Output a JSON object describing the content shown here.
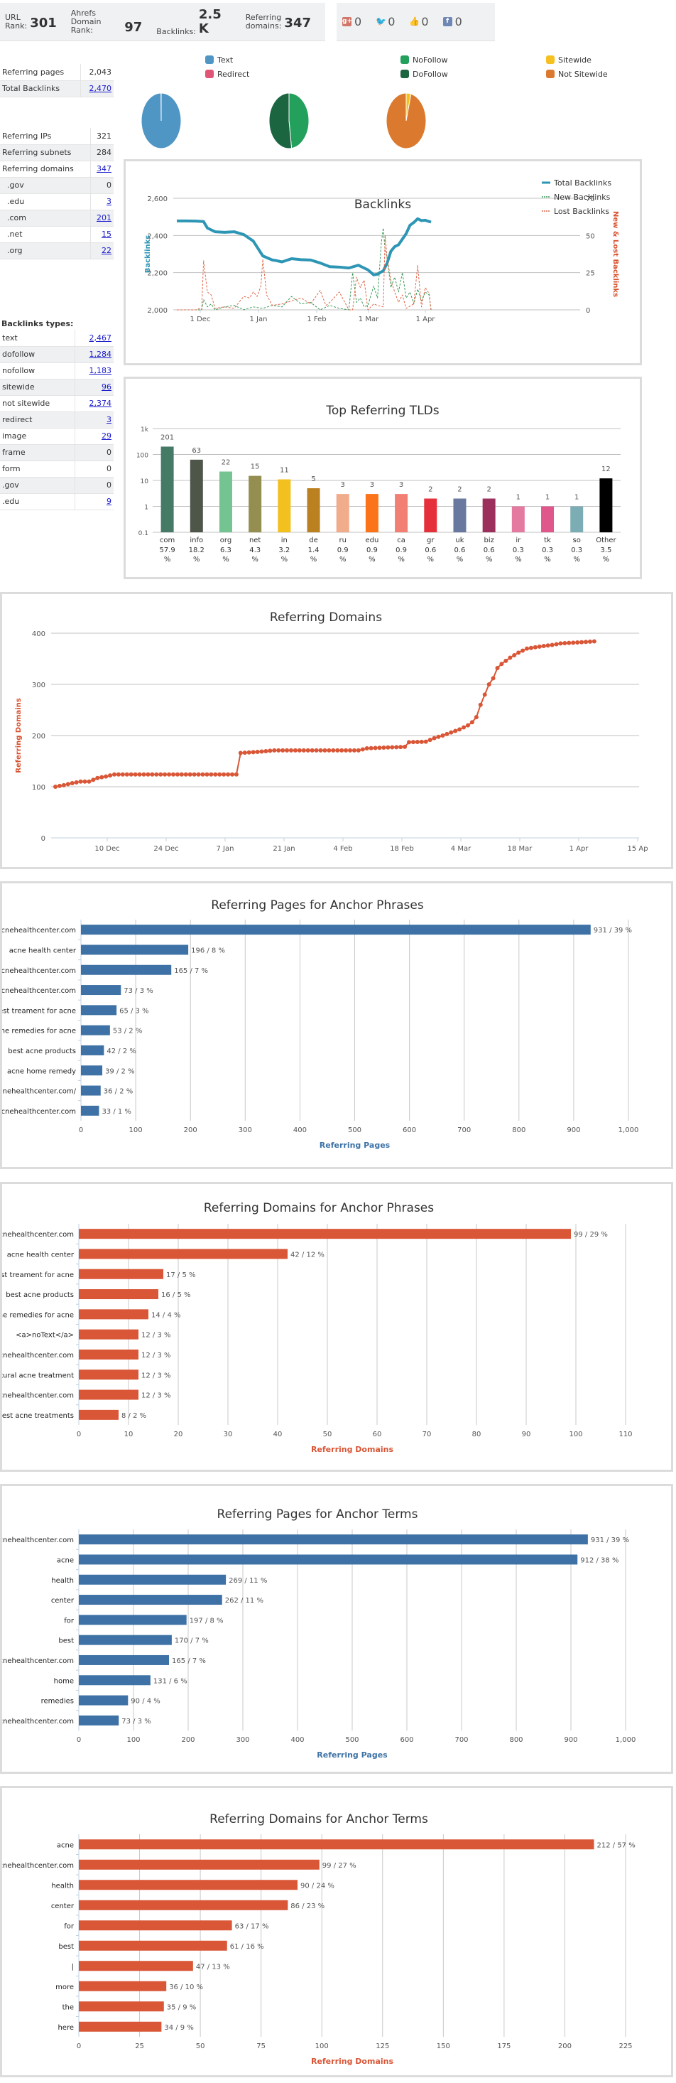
{
  "header": {
    "metrics": [
      {
        "label_line1": "URL",
        "label_line2": "Rank:",
        "value": "301"
      },
      {
        "label_line1": "Ahrefs",
        "label_line2": "Domain Rank:",
        "value": "97"
      },
      {
        "label_line1": "",
        "label_line2": "Backlinks:",
        "value": "2.5 K"
      },
      {
        "label_line1": "Referring",
        "label_line2": "domains:",
        "value": "347"
      }
    ],
    "social": [
      {
        "icon": "google-plus-icon",
        "glyph": "g+",
        "color": "#d0766a",
        "value": "0"
      },
      {
        "icon": "twitter-icon",
        "glyph": "🐦",
        "color": "#5aa9dd",
        "value": "0"
      },
      {
        "icon": "like-icon",
        "glyph": "👍",
        "color": "#7d9cc8",
        "value": "0"
      },
      {
        "icon": "facebook-icon",
        "glyph": "f",
        "color": "#6f87b5",
        "value": "0"
      }
    ]
  },
  "stats1": [
    {
      "label": "Referring pages",
      "value": "2,043",
      "link": false
    },
    {
      "label": "Total Backlinks",
      "value": "2,470",
      "link": true
    }
  ],
  "stats2": [
    {
      "label": "Referring IPs",
      "value": "321",
      "link": false
    },
    {
      "label": "Referring subnets",
      "value": "284",
      "link": false
    },
    {
      "label": "Referring domains",
      "value": "347",
      "link": true
    },
    {
      "label": "  .gov",
      "value": "0",
      "link": false
    },
    {
      "label": "  .edu",
      "value": "3",
      "link": true
    },
    {
      "label": "  .com",
      "value": "201",
      "link": true
    },
    {
      "label": "  .net",
      "value": "15",
      "link": true
    },
    {
      "label": "  .org",
      "value": "22",
      "link": true
    }
  ],
  "backlink_types": {
    "title": "Backlinks types:",
    "rows": [
      {
        "label": "text",
        "value": "2,467",
        "link": true
      },
      {
        "label": "dofollow",
        "value": "1,284",
        "link": true
      },
      {
        "label": "nofollow",
        "value": "1,183",
        "link": true
      },
      {
        "label": "sitewide",
        "value": "96",
        "link": true
      },
      {
        "label": "not sitewide",
        "value": "2,374",
        "link": true
      },
      {
        "label": "redirect",
        "value": "3",
        "link": true
      },
      {
        "label": "image",
        "value": "29",
        "link": true
      },
      {
        "label": "frame",
        "value": "0",
        "link": false
      },
      {
        "label": "form",
        "value": "0",
        "link": false
      },
      {
        "label": ".gov",
        "value": "0",
        "link": false
      },
      {
        "label": ".edu",
        "value": "9",
        "link": true
      }
    ]
  },
  "chart_data": [
    {
      "type": "pie",
      "title": "",
      "legend": [
        {
          "name": "Text",
          "color": "#4f96c5"
        },
        {
          "name": "Redirect",
          "color": "#e05575"
        }
      ],
      "slices": [
        {
          "name": "Text",
          "value": 2467,
          "color": "#4f96c5"
        },
        {
          "name": "Redirect",
          "value": 3,
          "color": "#e05575"
        }
      ]
    },
    {
      "type": "pie",
      "title": "",
      "legend": [
        {
          "name": "NoFollow",
          "color": "#23a05c"
        },
        {
          "name": "DoFollow",
          "color": "#1b6540"
        }
      ],
      "slices": [
        {
          "name": "NoFollow",
          "value": 1183,
          "color": "#23a05c"
        },
        {
          "name": "DoFollow",
          "value": 1284,
          "color": "#1b6540"
        }
      ]
    },
    {
      "type": "pie",
      "title": "",
      "legend": [
        {
          "name": "Sitewide",
          "color": "#f5c020"
        },
        {
          "name": "Not Sitewide",
          "color": "#db7a2e"
        }
      ],
      "slices": [
        {
          "name": "Sitewide",
          "value": 96,
          "color": "#f5c020"
        },
        {
          "name": "Not Sitewide",
          "value": 2374,
          "color": "#db7a2e"
        }
      ]
    },
    {
      "type": "line",
      "title": "Backlinks",
      "ylabel": "Backlinks",
      "y2label": "New & Lost Backlinks",
      "ylim": [
        2000,
        2600
      ],
      "yticks": [
        "2,000",
        "2,200",
        "2,400",
        "2,600"
      ],
      "y2lim": [
        0,
        75
      ],
      "y2ticks": [
        "0",
        "25",
        "50",
        "75"
      ],
      "xticks": [
        "1 Dec",
        "1 Jan",
        "1 Feb",
        "1 Mar",
        "1 Apr"
      ],
      "legend_position": "top-right",
      "series": [
        {
          "name": "Total Backlinks",
          "color": "#2e96b5",
          "axis": "left",
          "x": [
            0,
            5,
            10,
            14,
            16,
            20,
            25,
            30,
            35,
            40,
            45,
            50,
            52,
            55,
            60,
            65,
            70,
            75,
            80,
            85,
            90,
            95,
            100,
            103,
            105,
            108,
            110,
            112,
            114,
            116,
            118,
            120,
            122,
            124,
            126,
            128,
            130,
            132,
            133
          ],
          "values": [
            2478,
            2478,
            2477,
            2475,
            2440,
            2420,
            2417,
            2420,
            2405,
            2370,
            2290,
            2268,
            2265,
            2258,
            2275,
            2270,
            2268,
            2252,
            2232,
            2230,
            2225,
            2240,
            2215,
            2188,
            2192,
            2210,
            2250,
            2315,
            2340,
            2350,
            2380,
            2410,
            2455,
            2470,
            2490,
            2480,
            2482,
            2475,
            2472
          ]
        },
        {
          "name": "New Backlinks",
          "color": "#3a9a5a",
          "axis": "right",
          "dashed": true,
          "x": [
            0,
            10,
            13,
            14,
            16,
            18,
            20,
            25,
            30,
            35,
            40,
            45,
            50,
            55,
            60,
            65,
            70,
            75,
            80,
            85,
            90,
            92,
            94,
            96,
            98,
            100,
            103,
            105,
            107,
            108,
            109,
            110,
            112,
            114,
            116,
            118,
            120,
            122,
            124,
            126,
            128,
            130,
            132,
            133
          ],
          "values": [
            0,
            0,
            0,
            7,
            2,
            4,
            0,
            2,
            3,
            0,
            2,
            1,
            3,
            2,
            9,
            4,
            5,
            0,
            3,
            1,
            0,
            25,
            5,
            8,
            2,
            3,
            16,
            8,
            45,
            55,
            40,
            35,
            15,
            22,
            12,
            25,
            8,
            12,
            4,
            14,
            6,
            12,
            10,
            0
          ]
        },
        {
          "name": "Lost Backlinks",
          "color": "#e0684b",
          "axis": "right",
          "dashed": true,
          "x": [
            0,
            10,
            12,
            13,
            14,
            16,
            18,
            20,
            25,
            30,
            35,
            38,
            40,
            42,
            44,
            45,
            47,
            50,
            55,
            60,
            65,
            70,
            75,
            78,
            80,
            85,
            90,
            92,
            94,
            96,
            98,
            100,
            103,
            105,
            108,
            109,
            110,
            112,
            114,
            116,
            118,
            120,
            124,
            126,
            128,
            130,
            132,
            133
          ],
          "values": [
            0,
            0,
            1,
            0,
            33,
            12,
            10,
            1,
            2,
            1,
            9,
            8,
            12,
            9,
            16,
            34,
            10,
            3,
            4,
            6,
            8,
            4,
            13,
            3,
            5,
            12,
            0,
            0,
            22,
            15,
            20,
            0,
            4,
            3,
            2,
            50,
            35,
            20,
            12,
            5,
            10,
            1,
            4,
            30,
            2,
            15,
            11,
            0
          ]
        }
      ]
    },
    {
      "type": "bar",
      "title": "Top Referring TLDs",
      "yscale": "log",
      "ylim": [
        0.1,
        1000
      ],
      "yticks": [
        "0.1",
        "1",
        "10",
        "100",
        "1k"
      ],
      "categories": [
        "com",
        "info",
        "org",
        "net",
        "in",
        "de",
        "ru",
        "edu",
        "ca",
        "gr",
        "uk",
        "biz",
        "ir",
        "tk",
        "so",
        "Other"
      ],
      "percents": [
        "57.9",
        "18.2",
        "6.3",
        "4.3",
        "3.2",
        "1.4",
        "0.9",
        "0.9",
        "0.9",
        "0.6",
        "0.6",
        "0.6",
        "0.3",
        "0.3",
        "0.3",
        "3.5"
      ],
      "values": [
        201,
        63,
        22,
        15,
        11,
        5,
        3,
        3,
        3,
        2,
        2,
        2,
        1,
        1,
        1,
        12
      ],
      "colors": [
        "#457a66",
        "#4e5549",
        "#73c491",
        "#958e51",
        "#f2c01f",
        "#bb801f",
        "#f1ac8b",
        "#fb741a",
        "#f17f73",
        "#e5303c",
        "#68789f",
        "#9c305d",
        "#e57aa0",
        "#df578b",
        "#7cadb5",
        "#000000"
      ]
    },
    {
      "type": "line",
      "title": "Referring Domains",
      "ylabel": "Referring Domains",
      "ylim": [
        0,
        400
      ],
      "yticks": [
        "0",
        "100",
        "200",
        "300",
        "400"
      ],
      "xticks": [
        "10 Dec",
        "24 Dec",
        "7 Jan",
        "21 Jan",
        "4 Feb",
        "18 Feb",
        "4 Mar",
        "18 Mar",
        "1 Apr",
        "15 Ap"
      ],
      "color": "#d95636",
      "x_days": [
        0,
        2,
        4,
        6,
        8,
        10,
        12,
        14,
        43,
        44,
        48,
        52,
        72,
        74,
        83,
        84,
        88,
        90,
        92,
        94,
        96,
        98,
        99,
        100,
        101,
        102,
        103,
        104,
        105,
        106,
        108,
        110,
        112,
        116,
        118,
        120,
        122,
        124,
        126,
        128
      ],
      "values": [
        100,
        103,
        107,
        110,
        110,
        117,
        120,
        124,
        124,
        166,
        168,
        171,
        171,
        175,
        178,
        187,
        188,
        195,
        200,
        206,
        212,
        220,
        226,
        236,
        260,
        280,
        300,
        312,
        332,
        340,
        352,
        362,
        370,
        375,
        377,
        380,
        381,
        382,
        383,
        384
      ]
    },
    {
      "type": "bar",
      "orientation": "horizontal",
      "title": "Referring Pages for Anchor Phrases",
      "xlabel": "Referring Pages",
      "xlim": [
        0,
        1000
      ],
      "xticks": [
        "0",
        "100",
        "200",
        "300",
        "400",
        "500",
        "600",
        "700",
        "800",
        "900",
        "1,000"
      ],
      "color": "#3e72a6",
      "categories": [
        "http://www.acnehealthcenter.com",
        "acne health center",
        "ww.acnehealthcenter.com",
        "www.acnehealthcenter.com",
        "best treament for acne",
        "home remedies for acne",
        "best acne products",
        "acne home remedy",
        "http://www.acnehealthcenter.com/",
        "acnehealthcenter.com"
      ],
      "values": [
        931,
        196,
        165,
        73,
        65,
        53,
        42,
        39,
        36,
        33
      ],
      "labels": [
        "931 / 39 %",
        "196 / 8 %",
        "165 / 7 %",
        "73 / 3 %",
        "65 / 3 %",
        "53 / 2 %",
        "42 / 2 %",
        "39 / 2 %",
        "36 / 2 %",
        "33 / 1 %"
      ]
    },
    {
      "type": "bar",
      "orientation": "horizontal",
      "title": "Referring Domains for Anchor Phrases",
      "xlabel": "Referring Domains",
      "xlim": [
        0,
        110
      ],
      "xticks": [
        "0",
        "10",
        "20",
        "30",
        "40",
        "50",
        "60",
        "70",
        "80",
        "90",
        "100",
        "110"
      ],
      "color": "#d95636",
      "categories": [
        "http://www.acnehealthcenter.com",
        "acne health center",
        "best treament for acne",
        "best acne products",
        "home remedies for acne",
        "<a>noText</a>",
        "acnehealthcenter.com",
        "natural acne treatment",
        "www.acnehealthcenter.com",
        "best acne treatments"
      ],
      "values": [
        99,
        42,
        17,
        16,
        14,
        12,
        12,
        12,
        12,
        8
      ],
      "labels": [
        "99 / 29 %",
        "42 / 12 %",
        "17 / 5 %",
        "16 / 5 %",
        "14 / 4 %",
        "12 / 3 %",
        "12 / 3 %",
        "12 / 3 %",
        "12 / 3 %",
        "8 / 2 %"
      ]
    },
    {
      "type": "bar",
      "orientation": "horizontal",
      "title": "Referring Pages for Anchor Terms",
      "xlabel": "Referring Pages",
      "xlim": [
        0,
        1000
      ],
      "xticks": [
        "0",
        "100",
        "200",
        "300",
        "400",
        "500",
        "600",
        "700",
        "800",
        "900",
        "1,000"
      ],
      "color": "#3e72a6",
      "categories": [
        "http://www.acnehealthcenter.com",
        "acne",
        "health",
        "center",
        "for",
        "best",
        "ww.acnehealthcenter.com",
        "home",
        "remedies",
        "www.acnehealthcenter.com"
      ],
      "values": [
        931,
        912,
        269,
        262,
        197,
        170,
        165,
        131,
        90,
        73
      ],
      "labels": [
        "931 / 39 %",
        "912 / 38 %",
        "269 / 11 %",
        "262 / 11 %",
        "197 / 8 %",
        "170 / 7 %",
        "165 / 7 %",
        "131 / 6 %",
        "90 / 4 %",
        "73 / 3 %"
      ]
    },
    {
      "type": "bar",
      "orientation": "horizontal",
      "title": "Referring Domains for Anchor Terms",
      "xlabel": "Referring Domains",
      "xlim": [
        0,
        225
      ],
      "xticks": [
        "0",
        "25",
        "50",
        "75",
        "100",
        "125",
        "150",
        "175",
        "200",
        "225"
      ],
      "color": "#d95636",
      "categories": [
        "acne",
        "http://www.acnehealthcenter.com",
        "health",
        "center",
        "for",
        "best",
        "|",
        "more",
        "the",
        "here"
      ],
      "values": [
        212,
        99,
        90,
        86,
        63,
        61,
        47,
        36,
        35,
        34
      ],
      "labels": [
        "212 / 57 %",
        "99 / 27 %",
        "90 / 24 %",
        "86 / 23 %",
        "63 / 17 %",
        "61 / 16 %",
        "47 / 13 %",
        "36 / 10 %",
        "35 / 9 %",
        "34 / 9 %"
      ]
    }
  ]
}
